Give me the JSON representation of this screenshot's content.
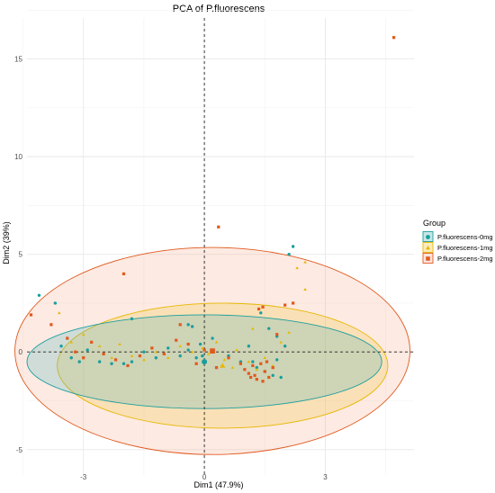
{
  "chart_data": {
    "type": "scatter",
    "title": "PCA of P.fluorescens",
    "xlabel": "Dim1 (47.9%)",
    "ylabel": "Dim2 (39%)",
    "xlim": [
      -4.4,
      5.2
    ],
    "ylim": [
      -6.3,
      17.1
    ],
    "x_ticks": [
      -3,
      0,
      3
    ],
    "y_ticks": [
      -5,
      0,
      5,
      10,
      15
    ],
    "grid": true,
    "zero_lines": true,
    "legend": {
      "title": "Group",
      "position": "right"
    },
    "colors": {
      "0mg": "#1a9e9e",
      "1mg": "#e6b800",
      "2mg": "#e05a1e"
    },
    "series": [
      {
        "name": "P.fluorescens-0mg",
        "color": "#1a9e9e",
        "shape": "circle",
        "ellipse": {
          "cx": 0.0,
          "cy": -0.5,
          "rx": 4.4,
          "ry": 2.4,
          "angle": 0
        },
        "points": [
          [
            -4.1,
            2.9
          ],
          [
            -3.7,
            2.5
          ],
          [
            -3.55,
            0.3
          ],
          [
            -3.3,
            -0.3
          ],
          [
            -3.1,
            -0.5
          ],
          [
            -2.9,
            0.1
          ],
          [
            -2.6,
            -0.5
          ],
          [
            -2.3,
            -0.6
          ],
          [
            -2.0,
            -0.6
          ],
          [
            -1.8,
            -0.5
          ],
          [
            -1.5,
            0.0
          ],
          [
            -1.2,
            -0.3
          ],
          [
            -0.9,
            0.2
          ],
          [
            -0.6,
            -0.2
          ],
          [
            -0.4,
            0.1
          ],
          [
            -0.2,
            -0.3
          ],
          [
            -0.1,
            0.4
          ],
          [
            -0.4,
            1.4
          ],
          [
            -0.3,
            1.3
          ],
          [
            -1.8,
            1.7
          ],
          [
            -0.05,
            -0.2
          ],
          [
            0.0,
            -0.5
          ],
          [
            0.2,
            0.7
          ],
          [
            0.6,
            -0.2
          ],
          [
            0.9,
            -0.5
          ],
          [
            1.1,
            0.3
          ],
          [
            1.3,
            -0.8
          ],
          [
            1.5,
            -1.0
          ],
          [
            1.7,
            -1.2
          ],
          [
            1.8,
            -0.4
          ],
          [
            2.0,
            0.3
          ],
          [
            1.6,
            1.2
          ],
          [
            1.4,
            2.0
          ],
          [
            2.1,
            5.0
          ],
          [
            2.2,
            5.4
          ],
          [
            1.8,
            0.8
          ],
          [
            1.9,
            -1.3
          ],
          [
            1.2,
            -0.5
          ]
        ]
      },
      {
        "name": "P.fluorescens-1mg",
        "color": "#e6b800",
        "shape": "triangle",
        "ellipse": {
          "cx": 0.45,
          "cy": -0.7,
          "rx": 4.1,
          "ry": 3.2,
          "angle": 0
        },
        "points": [
          [
            -3.6,
            2.0
          ],
          [
            -3.3,
            0.5
          ],
          [
            -3.0,
            0.9
          ],
          [
            -2.6,
            0.3
          ],
          [
            -2.3,
            -0.3
          ],
          [
            -2.1,
            0.4
          ],
          [
            -1.8,
            -0.2
          ],
          [
            -1.5,
            -0.4
          ],
          [
            -1.2,
            0.0
          ],
          [
            -0.9,
            -0.3
          ],
          [
            -0.6,
            0.3
          ],
          [
            -0.3,
            0.0
          ],
          [
            0.1,
            -0.1
          ],
          [
            0.3,
            0.5
          ],
          [
            0.5,
            -0.4
          ],
          [
            0.8,
            0.1
          ],
          [
            1.1,
            -0.5
          ],
          [
            1.3,
            -0.9
          ],
          [
            1.5,
            -0.3
          ],
          [
            1.7,
            -0.7
          ],
          [
            1.9,
            0.5
          ],
          [
            2.1,
            1.0
          ],
          [
            2.3,
            4.3
          ],
          [
            2.5,
            4.6
          ],
          [
            2.5,
            3.2
          ],
          [
            1.2,
            1.2
          ],
          [
            0.7,
            -0.8
          ],
          [
            -0.05,
            0.2
          ]
        ]
      },
      {
        "name": "P.fluorescens-2mg",
        "color": "#e05a1e",
        "shape": "square",
        "ellipse": {
          "cx": 0.2,
          "cy": 0.05,
          "rx": 4.9,
          "ry": 5.3,
          "angle": 0
        },
        "points": [
          [
            4.7,
            16.1
          ],
          [
            0.35,
            6.4
          ],
          [
            -2.0,
            4.0
          ],
          [
            -4.3,
            1.9
          ],
          [
            -3.4,
            0.7
          ],
          [
            -3.2,
            0.0
          ],
          [
            -3.0,
            -0.3
          ],
          [
            -2.8,
            0.5
          ],
          [
            -2.5,
            -0.1
          ],
          [
            -2.2,
            -0.4
          ],
          [
            -1.9,
            -0.7
          ],
          [
            -1.6,
            -0.2
          ],
          [
            -1.3,
            0.2
          ],
          [
            -1.0,
            -0.1
          ],
          [
            -0.7,
            0.6
          ],
          [
            -0.4,
            0.4
          ],
          [
            -0.2,
            -0.6
          ],
          [
            0.0,
            0.1
          ],
          [
            0.3,
            -0.8
          ],
          [
            0.6,
            -0.3
          ],
          [
            0.9,
            -0.6
          ],
          [
            1.0,
            -0.9
          ],
          [
            1.1,
            -1.1
          ],
          [
            1.2,
            -0.7
          ],
          [
            1.3,
            -1.4
          ],
          [
            1.4,
            -0.6
          ],
          [
            1.5,
            -1.0
          ],
          [
            1.6,
            -1.3
          ],
          [
            1.7,
            -0.8
          ],
          [
            1.25,
            -1.2
          ],
          [
            1.45,
            -1.5
          ],
          [
            1.35,
            2.2
          ],
          [
            1.45,
            2.3
          ],
          [
            2.2,
            2.5
          ],
          [
            2.0,
            2.4
          ],
          [
            1.8,
            0.9
          ],
          [
            -0.6,
            1.4
          ],
          [
            -3.8,
            1.4
          ],
          [
            1.55,
            -0.5
          ],
          [
            1.15,
            -1.3
          ]
        ]
      }
    ]
  }
}
